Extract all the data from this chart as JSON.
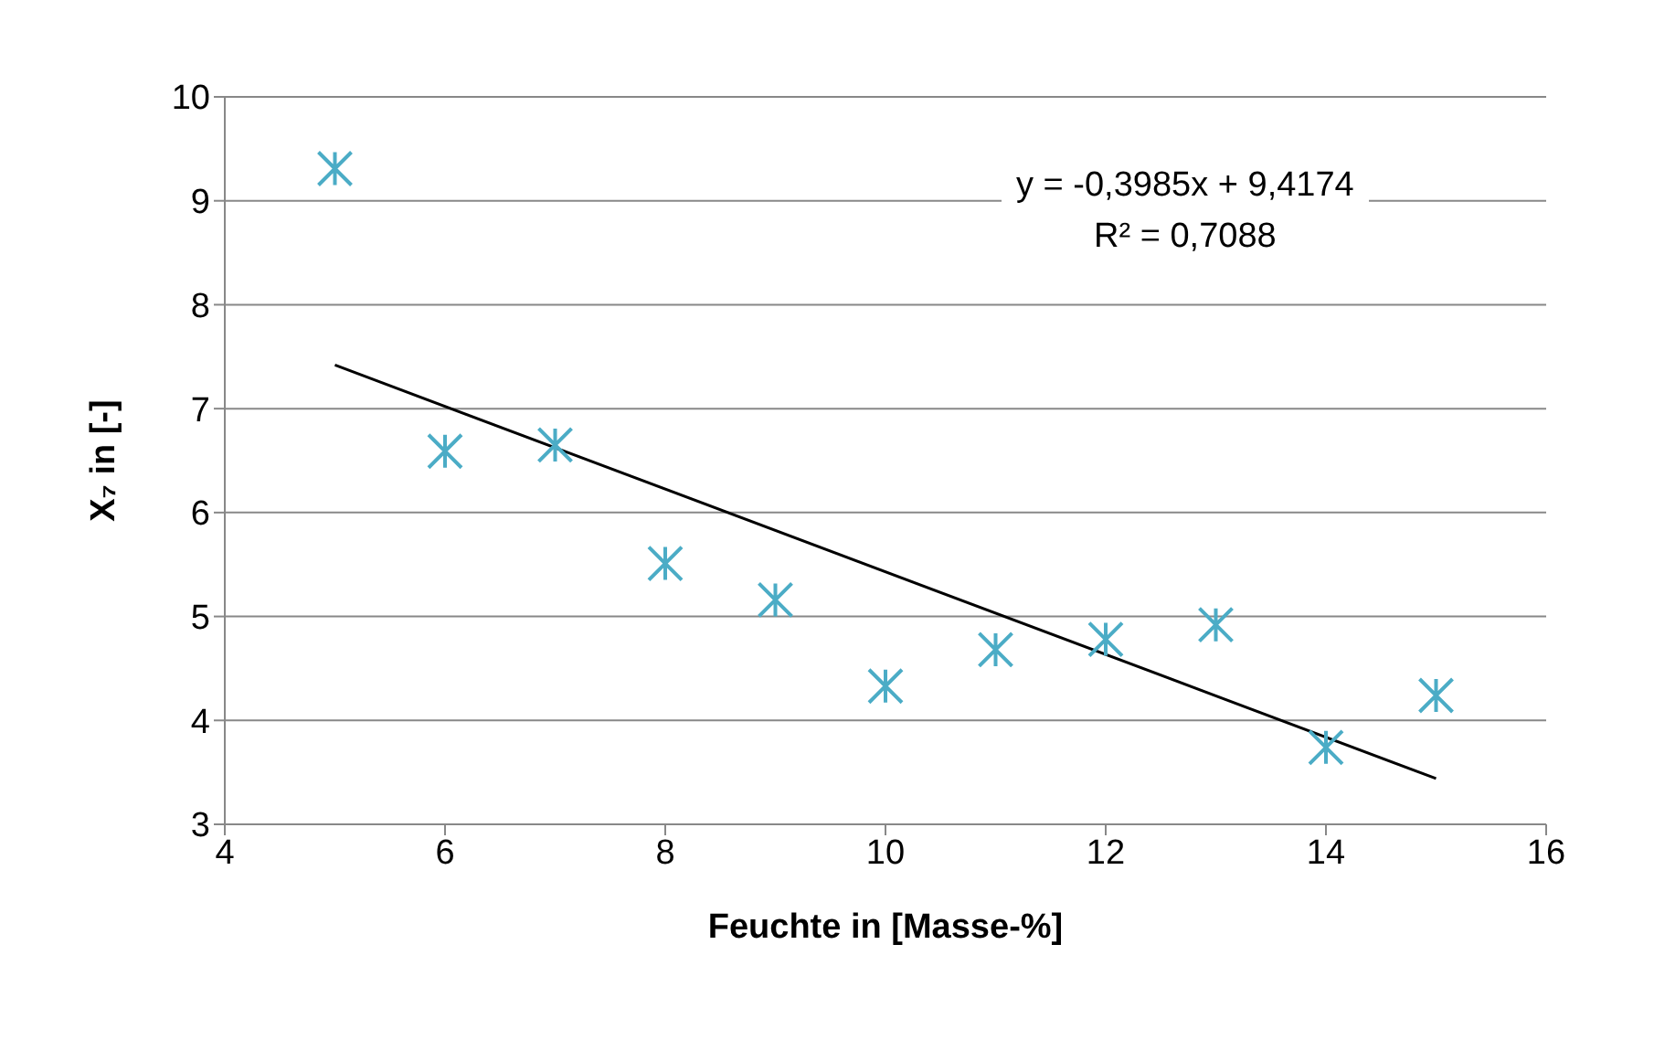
{
  "chart_data": {
    "type": "scatter",
    "xlabel": "Feuchte in [Masse-%]",
    "ylabel": "X₇ in [-]",
    "x": [
      5,
      6,
      7,
      8,
      9,
      10,
      11,
      12,
      13,
      14,
      15
    ],
    "series": [
      {
        "type": "scatter",
        "color": "#4bacc6",
        "marker": "cross",
        "values": [
          9.31,
          6.59,
          6.65,
          5.51,
          5.16,
          4.33,
          4.68,
          4.78,
          4.92,
          3.74,
          4.24
        ]
      },
      {
        "type": "line",
        "color": "#000000",
        "x": [
          5,
          15
        ],
        "values": [
          7.42,
          3.44
        ]
      }
    ],
    "annotations": [
      "y = -0,3985x + 9,4174",
      "R² = 0,7088"
    ],
    "xlim": [
      4,
      16
    ],
    "xticks": [
      4,
      6,
      8,
      10,
      12,
      14,
      16
    ],
    "ylim": [
      3,
      10
    ],
    "yticks": [
      3,
      4,
      5,
      6,
      7,
      8,
      9,
      10
    ],
    "grid": "y",
    "legend": false
  }
}
